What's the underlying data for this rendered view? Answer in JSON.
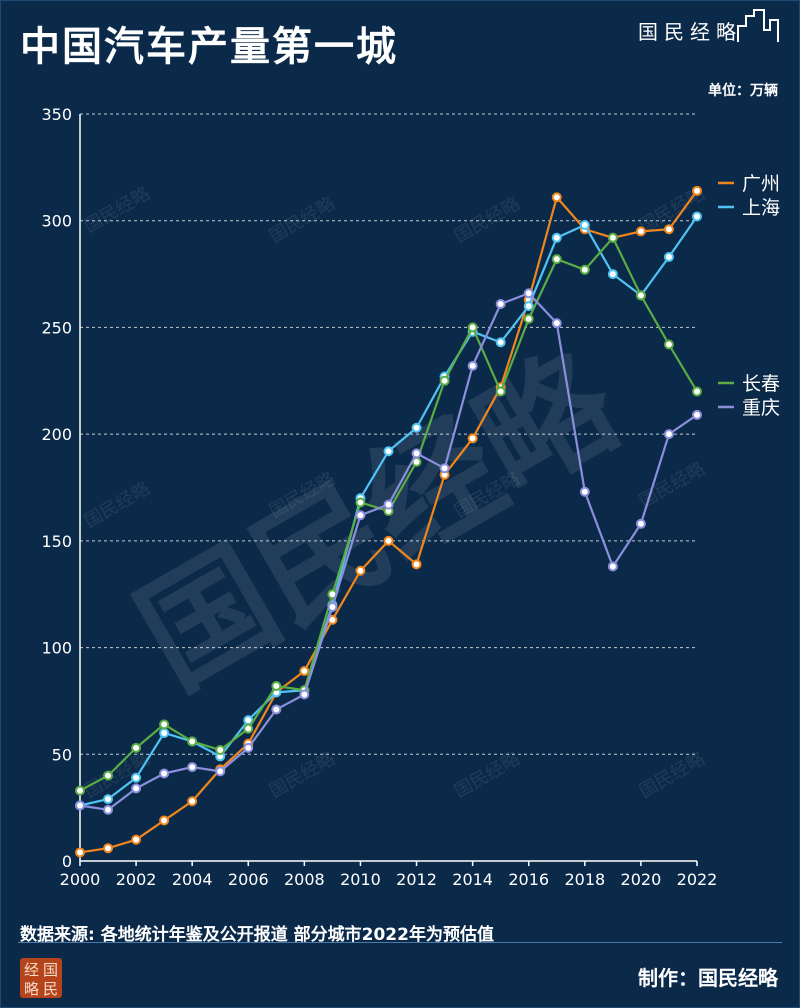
{
  "header": {
    "title": "中国汽车产量第一城",
    "brand": "国民经略",
    "unit": "单位：万辆"
  },
  "footer": {
    "source": "数据来源: 各地统计年鉴及公开报道  部分城市2022年为预估值",
    "credit": "制作：国民经略",
    "logo_chars": [
      "经",
      "国",
      "略",
      "民"
    ]
  },
  "watermark": {
    "small": "国民经略",
    "large": "国民经略"
  },
  "colors": {
    "background": "#0b2a4a",
    "guangzhou": "#f0861c",
    "shanghai": "#4fc3f2",
    "changchun": "#5aac44",
    "chongqing": "#8b8fdc"
  },
  "chart_data": {
    "type": "line",
    "title": "中国汽车产量第一城",
    "xlabel": "",
    "ylabel": "万辆",
    "x": [
      2000,
      2001,
      2002,
      2003,
      2004,
      2005,
      2006,
      2007,
      2008,
      2009,
      2010,
      2011,
      2012,
      2013,
      2014,
      2015,
      2016,
      2017,
      2018,
      2019,
      2020,
      2021,
      2022
    ],
    "xticks": [
      2000,
      2002,
      2004,
      2006,
      2008,
      2010,
      2012,
      2014,
      2016,
      2018,
      2020,
      2022
    ],
    "ylim": [
      0,
      350
    ],
    "yticks": [
      0,
      50,
      100,
      150,
      200,
      250,
      300,
      350
    ],
    "grid": "horizontal dashed",
    "legend_position": "right",
    "series": [
      {
        "name": "广州",
        "color": "#f0861c",
        "values": [
          4,
          6,
          10,
          19,
          28,
          43,
          55,
          79,
          89,
          113,
          136,
          150,
          139,
          181,
          198,
          222,
          263,
          311,
          296,
          292,
          295,
          296,
          314
        ]
      },
      {
        "name": "上海",
        "color": "#4fc3f2",
        "values": [
          26,
          29,
          39,
          60,
          56,
          49,
          66,
          79,
          80,
          120,
          170,
          192,
          203,
          227,
          248,
          243,
          260,
          292,
          298,
          275,
          265,
          283,
          302
        ]
      },
      {
        "name": "长春",
        "color": "#5aac44",
        "values": [
          33,
          40,
          53,
          64,
          56,
          52,
          62,
          82,
          80,
          125,
          168,
          164,
          187,
          225,
          250,
          220,
          254,
          282,
          277,
          292,
          265,
          242,
          220
        ]
      },
      {
        "name": "重庆",
        "color": "#8b8fdc",
        "values": [
          26,
          24,
          34,
          41,
          44,
          42,
          53,
          71,
          78,
          119,
          162,
          167,
          191,
          184,
          232,
          261,
          266,
          252,
          173,
          138,
          158,
          200,
          209
        ]
      }
    ]
  }
}
